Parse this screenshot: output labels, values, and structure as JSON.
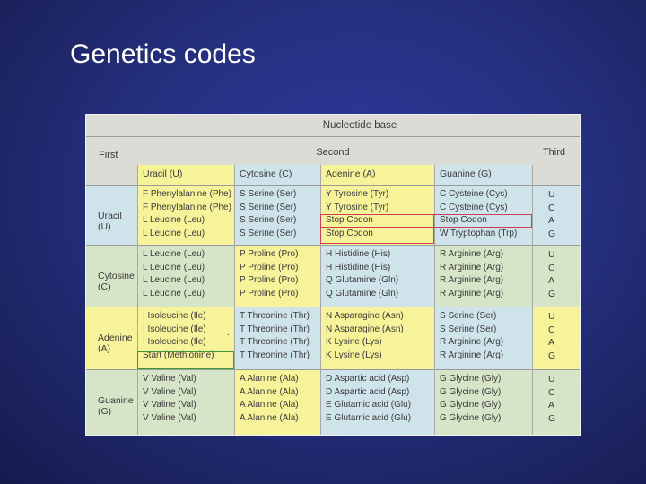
{
  "slide": {
    "title": "Genetics codes"
  },
  "table": {
    "title": "Nucleotide base",
    "first_label": "First",
    "second_label": "Second",
    "third_label": "Third",
    "columns": [
      "Uracil (U)",
      "Cytosine (C)",
      "Adenine (A)",
      "Guanine (G)"
    ],
    "rows": [
      {
        "first": [
          "Uracil",
          "(U)"
        ],
        "cells": [
          [
            "F Phenylalanine (Phe)",
            "F Phenylalanine (Phe)",
            "L Leucine (Leu)",
            "L Leucine (Leu)"
          ],
          [
            "S Serine (Ser)",
            "S Serine (Ser)",
            "S Serine (Ser)",
            "S Serine (Ser)"
          ],
          [
            "Y Tyrosine (Tyr)",
            "Y Tyrosine (Tyr)",
            "Stop Codon",
            "Stop Codon"
          ],
          [
            "C Cysteine (Cys)",
            "C Cysteine (Cys)",
            "Stop Codon",
            "W Tryptophan (Trp)"
          ]
        ],
        "third": [
          "U",
          "C",
          "A",
          "G"
        ]
      },
      {
        "first": [
          "Cytosine",
          "(C)"
        ],
        "cells": [
          [
            "L Leucine (Leu)",
            "L Leucine (Leu)",
            "L Leucine (Leu)",
            "L Leucine (Leu)"
          ],
          [
            "P Proline (Pro)",
            "P Proline (Pro)",
            "P Proline (Pro)",
            "P Proline (Pro)"
          ],
          [
            "H Histidine (His)",
            "H Histidine (His)",
            "Q Glutamine (Gln)",
            "Q Glutamine (Gln)"
          ],
          [
            "R Arginine (Arg)",
            "R Arginine (Arg)",
            "R Arginine (Arg)",
            "R Arginine (Arg)"
          ]
        ],
        "third": [
          "U",
          "C",
          "A",
          "G"
        ]
      },
      {
        "first": [
          "Adenine",
          "(A)"
        ],
        "cells": [
          [
            "I Isoleucine (Ile)",
            "I Isoleucine (Ile)",
            "I Isoleucine (Ile)",
            "Start (Methionine)"
          ],
          [
            "T Threonine (Thr)",
            "T Threonine (Thr)",
            "T Threonine (Thr)",
            "T Threonine (Thr)"
          ],
          [
            "N Asparagine (Asn)",
            "N Asparagine (Asn)",
            "K Lysine (Lys)",
            "K Lysine (Lys)"
          ],
          [
            "S Serine (Ser)",
            "S Serine (Ser)",
            "R Arginine (Arg)",
            "R Arginine (Arg)"
          ]
        ],
        "third": [
          "U",
          "C",
          "A",
          "G"
        ]
      },
      {
        "first": [
          "Guanine",
          "(G)"
        ],
        "cells": [
          [
            "V Valine (Val)",
            "V Valine (Val)",
            "V Valine (Val)",
            "V Valine (Val)"
          ],
          [
            "A Alanine (Ala)",
            "A Alanine (Ala)",
            "A Alanine (Ala)",
            "A Alanine (Ala)"
          ],
          [
            "D Aspartic acid (Asp)",
            "D Aspartic acid (Asp)",
            "E Glutamic acid (Glu)",
            "E Glutamic acid (Glu)"
          ],
          [
            "G Glycine (Gly)",
            "G Glycine (Gly)",
            "G Glycine (Gly)",
            "G Glycine (Gly)"
          ]
        ],
        "third": [
          "U",
          "C",
          "A",
          "G"
        ]
      }
    ],
    "colors": {
      "yellow": "#f6f39a",
      "blue": "#cfe3ea",
      "green": "#d6e4c7",
      "highlight_red": "#cc3d5a",
      "highlight_green": "#3a9a3a"
    }
  }
}
